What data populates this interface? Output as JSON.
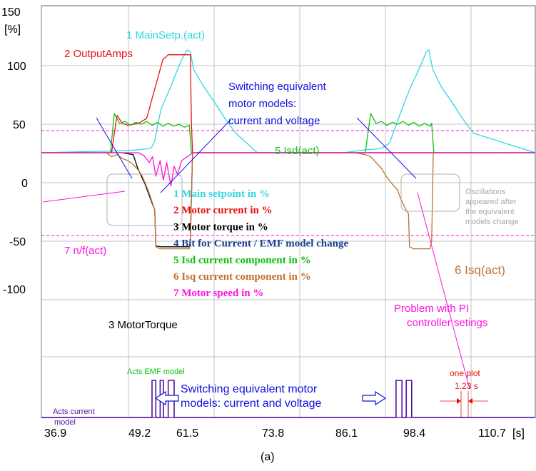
{
  "chart_data": {
    "type": "line",
    "caption": "(a)",
    "y_unit": "[%]",
    "x_unit": "[s]",
    "xlim": [
      30.0,
      121.5
    ],
    "ylim": [
      -150,
      150
    ],
    "y_ticks": [
      150,
      100,
      50,
      0,
      -50,
      -100
    ],
    "x_ticks": [
      36.9,
      49.2,
      61.5,
      73.8,
      86.1,
      98.4,
      110.7
    ],
    "x_tick_labels": [
      "36.9",
      "49.2",
      "61.5",
      "73.8",
      "86.1",
      "98.4",
      "110.7"
    ],
    "colors": {
      "main_setpoint": "#30d8e0",
      "output_amps": "#e81010",
      "motor_torque": "#000000",
      "bit": "#1a3f8f",
      "isd": "#10c010",
      "isq": "#c07030",
      "speed": "#ff10e0",
      "annotation": "#1010e0",
      "bit_trace": "#5010a0"
    },
    "series": [
      {
        "name": "1 MainSetp.(act)",
        "color": "#30d8e0",
        "x": [
          30,
          45,
          48,
          49.6,
          50.4,
          51,
          51.6,
          52.2,
          53,
          54,
          55,
          56,
          57,
          57.6,
          58.2,
          60,
          62,
          64,
          66,
          70,
          86,
          90,
          92.5,
          93.5,
          94.5,
          95.5,
          96.5,
          97.5,
          98.5,
          99.5,
          100.5,
          101.3,
          101.8,
          102.5,
          104,
          106,
          108,
          110,
          121.5
        ],
        "y": [
          0,
          2,
          3,
          4,
          5,
          12,
          30,
          45,
          55,
          68,
          82,
          95,
          105,
          103,
          85,
          68,
          52,
          35,
          20,
          0,
          0,
          3,
          4,
          6,
          10,
          25,
          40,
          55,
          68,
          80,
          92,
          103,
          105,
          85,
          68,
          52,
          35,
          20,
          0
        ]
      },
      {
        "name": "2 OutputAmps",
        "color": "#e81010",
        "x": [
          30,
          43,
          44,
          45,
          46,
          48,
          49.5,
          50.5,
          51.5,
          52.5,
          53.5,
          54.5,
          56,
          57.6,
          57.8,
          58,
          121.5
        ],
        "y": [
          0,
          0,
          38,
          30,
          28,
          30,
          35,
          55,
          75,
          95,
          100,
          100,
          100,
          100,
          30,
          0,
          0
        ]
      },
      {
        "name": "3 MotorTorque",
        "color": "#000000",
        "x": [
          30,
          45,
          47,
          47.8,
          48.6,
          49.2,
          49.6,
          50.4,
          51,
          51.2,
          52,
          57.4,
          57.6,
          58,
          121.5
        ],
        "y": [
          0,
          0,
          -2,
          -15,
          -25,
          -32,
          -38,
          -50,
          -58,
          -95,
          -96,
          -96,
          -90,
          0,
          0
        ]
      },
      {
        "name": "4 Bit for Current / EMF model change",
        "color": "#1a3f8f",
        "x": [
          30,
          50.5,
          50.5,
          51.2,
          51.2,
          52,
          52,
          52.6,
          52.6,
          53.5,
          53.5,
          54.6,
          54.6,
          95.7,
          95.7,
          96.8,
          96.8,
          97.6,
          97.6,
          98.6,
          98.6,
          121.5
        ],
        "y": [
          0,
          0,
          1,
          1,
          0,
          0,
          1,
          1,
          0,
          0,
          1,
          1,
          0,
          0,
          1,
          1,
          0,
          0,
          1,
          1,
          0,
          0
        ]
      },
      {
        "name": "5 Isd(act)",
        "color": "#10c010",
        "x": [
          30,
          42.8,
          43.5,
          44.5,
          45.5,
          46.5,
          47.5,
          48.5,
          49.5,
          50.5,
          51.5,
          52.5,
          53.5,
          54.5,
          55.5,
          56.5,
          57.4,
          57.8,
          58.2,
          86,
          90,
          91,
          92,
          93,
          94,
          95,
          96,
          97,
          98,
          99,
          100,
          101,
          102,
          102.3,
          102.7,
          121.5
        ],
        "y": [
          0,
          0,
          40,
          30,
          32,
          28,
          31,
          29,
          32,
          28,
          31,
          27,
          30,
          27,
          29,
          26,
          28,
          0,
          0,
          0,
          0,
          40,
          30,
          32,
          28,
          31,
          29,
          32,
          28,
          31,
          27,
          30,
          27,
          30,
          0,
          0
        ]
      },
      {
        "name": "6 Isq(act)",
        "color": "#c07030",
        "x": [
          30,
          42,
          43,
          44,
          45,
          46,
          47,
          48,
          48.5,
          49,
          49.6,
          50,
          50.5,
          51,
          51.2,
          52,
          57.4,
          57.6,
          58,
          88,
          90,
          91,
          92,
          93,
          94,
          95,
          96,
          96.5,
          97,
          97.5,
          98,
          98.2,
          99,
          102,
          102.3,
          102.6,
          121.5
        ],
        "y": [
          0,
          0,
          -4,
          -2,
          -6,
          -8,
          -12,
          -18,
          -22,
          -28,
          -36,
          -42,
          -50,
          -58,
          -96,
          -98,
          -98,
          -90,
          0,
          0,
          -2,
          -4,
          -10,
          -16,
          -25,
          -32,
          -38,
          -46,
          -52,
          -58,
          -62,
          -96,
          -98,
          -98,
          -90,
          0,
          0
        ]
      },
      {
        "name": "7 n/f(act)",
        "color": "#ff10e0",
        "x": [
          30,
          48,
          49,
          50,
          50.6,
          51.2,
          52,
          52.6,
          53.2,
          54,
          54.6,
          55.2,
          56,
          57.6,
          58,
          121.5
        ],
        "y": [
          0,
          0,
          -3,
          -10,
          -4,
          -24,
          -8,
          -28,
          -10,
          -34,
          -14,
          -22,
          -8,
          -2,
          0,
          0
        ]
      }
    ],
    "annotations": {
      "title_1": "Switching equivalent",
      "title_2": "motor models:",
      "title_3": "current and voltage",
      "osc_1": "Oscillations",
      "osc_2": "appeared after",
      "osc_3": "the equivalent",
      "osc_4": "models change",
      "pi_1": "Problem with PI",
      "pi_2": "controller setings",
      "lower_1": "Switching equivalent motor",
      "lower_2": "models: current and voltage",
      "one_plot_1": "one plot",
      "one_plot_2": "1.23 s",
      "acts_emf": "Acts EMF model",
      "acts_current_1": "Acts current",
      "acts_current_2": "model"
    },
    "series_labels": {
      "main_setp": "1  MainSetp.(act)",
      "output_amps": "2  OutputAmps",
      "isd": "5  Isd(act)",
      "nf": "7  n/f(act)",
      "isq": "6  Isq(act)",
      "torque": "3  MotorTorque"
    },
    "legend": [
      {
        "text": "1 Main setpoint in %",
        "color": "#30d8e0"
      },
      {
        "text": "2 Motor current in %",
        "color": "#e81010"
      },
      {
        "text": "3 Motor torque in %",
        "color": "#000000"
      },
      {
        "text": "4 Bit for Current / EMF model change",
        "color": "#1a3f8f"
      },
      {
        "text": "5 Isd current component in %",
        "color": "#10c010"
      },
      {
        "text": "6 Isq current component in %",
        "color": "#c07030"
      },
      {
        "text": "7 Motor speed in %",
        "color": "#ff10e0"
      }
    ]
  }
}
